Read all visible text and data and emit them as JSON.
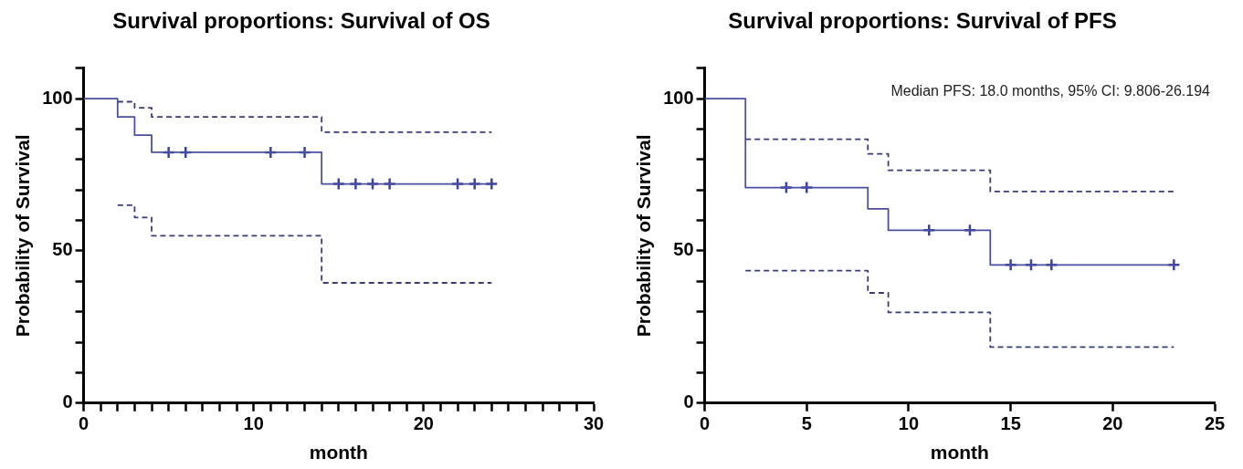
{
  "chart_data": [
    {
      "type": "step",
      "title": "Survival proportions: Survival of OS",
      "xlabel": "month",
      "ylabel": "Probability of Survival",
      "xlim": [
        0,
        30
      ],
      "xticks": [
        0,
        {
          "value": 1,
          "label": null
        },
        {
          "value": 2,
          "label": null
        },
        {
          "value": 3,
          "label": null
        },
        {
          "value": 4,
          "label": null
        },
        {
          "value": 5,
          "label": null
        },
        {
          "value": 6,
          "label": null
        },
        {
          "value": 7,
          "label": null
        },
        {
          "value": 8,
          "label": null
        },
        {
          "value": 9,
          "label": null
        },
        10,
        {
          "value": 11,
          "label": null
        },
        {
          "value": 12,
          "label": null
        },
        {
          "value": 13,
          "label": null
        },
        {
          "value": 14,
          "label": null
        },
        {
          "value": 15,
          "label": null
        },
        {
          "value": 16,
          "label": null
        },
        {
          "value": 17,
          "label": null
        },
        {
          "value": 18,
          "label": null
        },
        {
          "value": 19,
          "label": null
        },
        20,
        {
          "value": 21,
          "label": null
        },
        {
          "value": 22,
          "label": null
        },
        {
          "value": 23,
          "label": null
        },
        {
          "value": 24,
          "label": null
        },
        {
          "value": 25,
          "label": null
        },
        {
          "value": 26,
          "label": null
        },
        {
          "value": 27,
          "label": null
        },
        {
          "value": 28,
          "label": null
        },
        {
          "value": 29,
          "label": null
        },
        30
      ],
      "ylim": [
        0,
        110
      ],
      "yticks": [
        0,
        {
          "value": 10,
          "label": null
        },
        {
          "value": 20,
          "label": null
        },
        {
          "value": 30,
          "label": null
        },
        {
          "value": 40,
          "label": null
        },
        50,
        {
          "value": 60,
          "label": null
        },
        {
          "value": 70,
          "label": null
        },
        {
          "value": 80,
          "label": null
        },
        {
          "value": 90,
          "label": null
        },
        100,
        {
          "value": 110,
          "label": null
        }
      ],
      "grid": false,
      "legend": false,
      "series": [
        {
          "color": "#4b4fa0",
          "line_style": "solid",
          "x": [
            0,
            2,
            3,
            4,
            14,
            24
          ],
          "values": [
            100,
            94,
            88,
            82.4,
            72,
            72
          ]
        },
        {
          "color": "#3b3d78",
          "line_style": "dashed",
          "x": [
            2,
            3,
            4,
            14,
            24
          ],
          "values": [
            99,
            97,
            94,
            89,
            89
          ]
        },
        {
          "color": "#3b3d78",
          "line_style": "dashed",
          "x": [
            2,
            3,
            4,
            14,
            24
          ],
          "values": [
            65,
            61,
            55,
            39.5,
            39.5
          ]
        },
        {
          "type": "scatter",
          "marker": "cross",
          "color": "#3d42a0",
          "x": [
            5,
            6,
            11,
            13,
            15,
            16,
            17,
            18,
            22,
            23,
            24
          ],
          "values": [
            82.4,
            82.4,
            82.4,
            82.4,
            72,
            72,
            72,
            72,
            72,
            72,
            72
          ]
        }
      ]
    },
    {
      "type": "step",
      "title": "Survival proportions: Survival of PFS",
      "xlabel": "month",
      "ylabel": "Probability of Survival",
      "annotations": [
        "Median PFS: 18.0 months, 95% CI: 9.806-26.194"
      ],
      "xlim": [
        0,
        25
      ],
      "xticks": [
        0,
        5,
        10,
        15,
        20,
        25
      ],
      "ylim": [
        0,
        110
      ],
      "yticks": [
        0,
        {
          "value": 10,
          "label": null
        },
        {
          "value": 20,
          "label": null
        },
        {
          "value": 30,
          "label": null
        },
        {
          "value": 40,
          "label": null
        },
        50,
        {
          "value": 60,
          "label": null
        },
        {
          "value": 70,
          "label": null
        },
        {
          "value": 80,
          "label": null
        },
        {
          "value": 90,
          "label": null
        },
        100,
        {
          "value": 110,
          "label": null
        }
      ],
      "grid": false,
      "legend": false,
      "series": [
        {
          "color": "#4b4fa0",
          "line_style": "solid",
          "x": [
            0,
            2,
            8,
            9,
            14,
            23
          ],
          "values": [
            100,
            70.8,
            63.8,
            56.8,
            45.4,
            45.4
          ]
        },
        {
          "color": "#3b3d78",
          "line_style": "dashed",
          "x": [
            2,
            8,
            9,
            14,
            23
          ],
          "values": [
            86.7,
            81.9,
            76.5,
            69.5,
            69.5
          ]
        },
        {
          "color": "#3b3d78",
          "line_style": "dashed",
          "x": [
            2,
            8,
            9,
            14,
            23
          ],
          "values": [
            43.5,
            36.2,
            29.8,
            18.4,
            18.4
          ]
        },
        {
          "type": "scatter",
          "marker": "cross",
          "color": "#3d42a0",
          "x": [
            4,
            5,
            11,
            13,
            15,
            16,
            17,
            23
          ],
          "values": [
            70.8,
            70.8,
            56.8,
            56.8,
            45.4,
            45.4,
            45.4,
            45.4
          ]
        }
      ]
    }
  ]
}
